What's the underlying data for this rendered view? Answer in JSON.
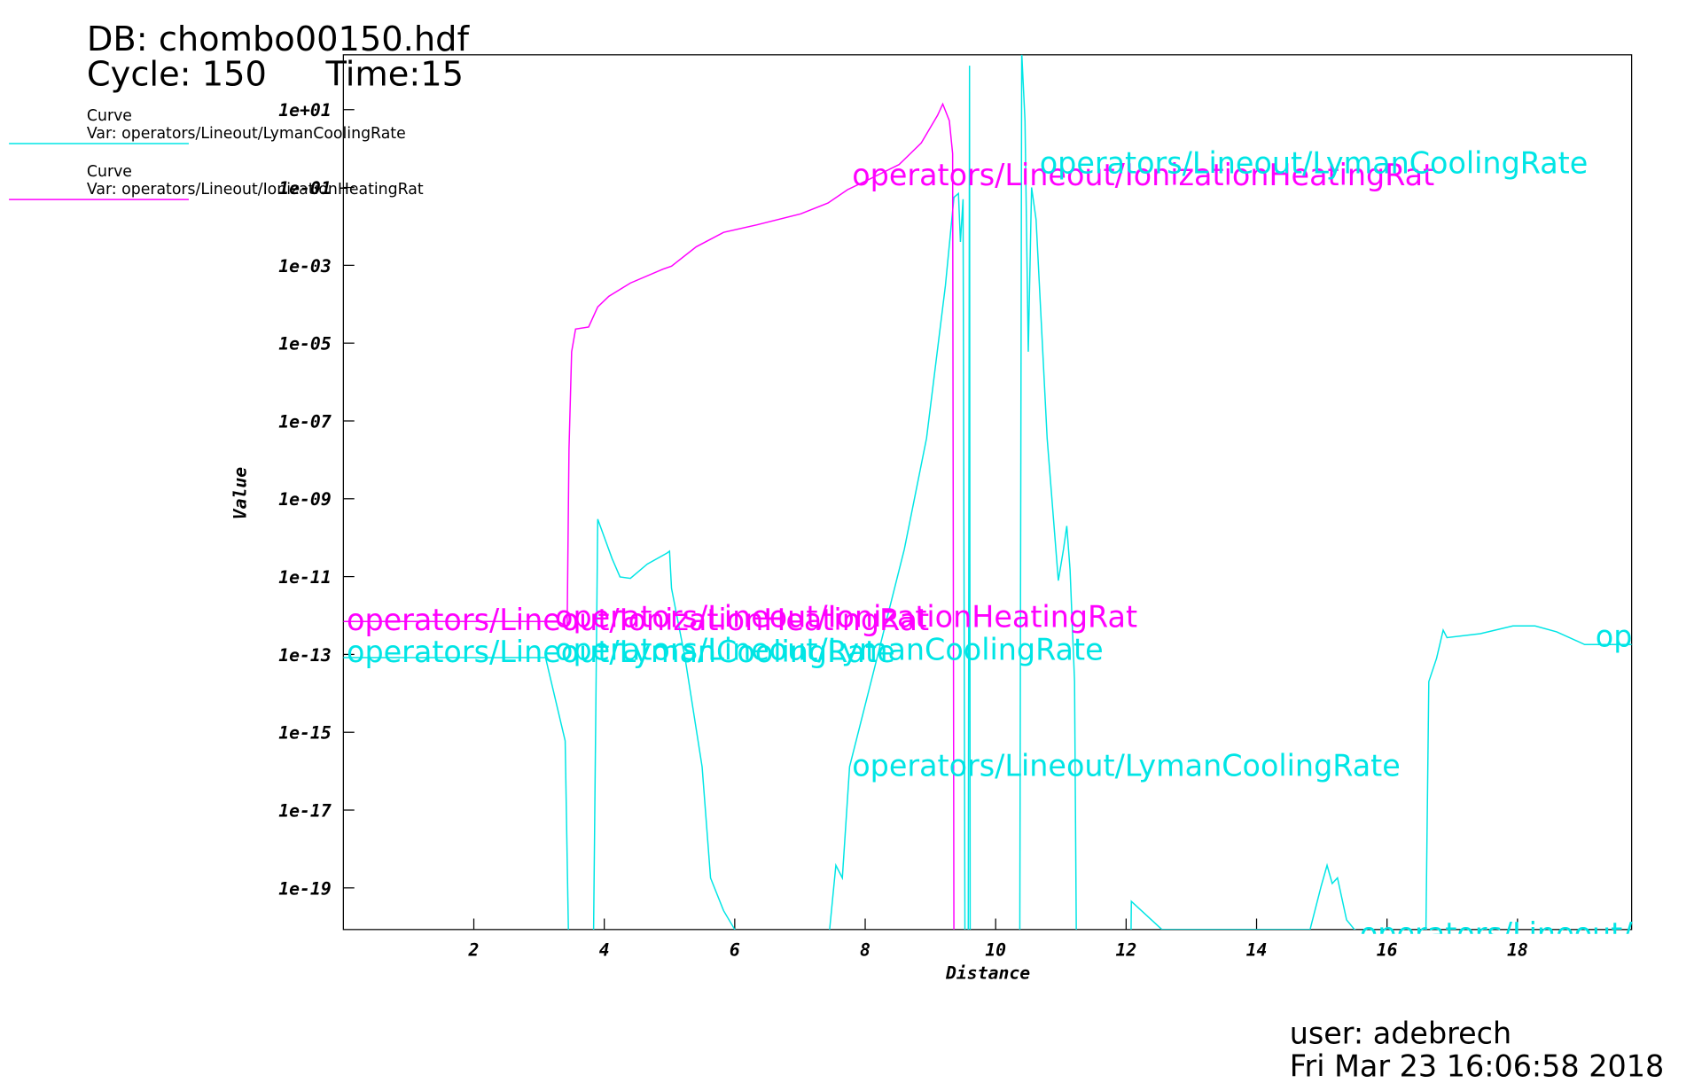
{
  "chart_data": {
    "type": "line",
    "header": {
      "db": "DB: chombo00150.hdf",
      "cycle": "Cycle: 150",
      "time": "Time:15"
    },
    "footer": {
      "user": "user: adebrech",
      "date": "Fri Mar 23 16:06:58 2018"
    },
    "xlabel": "Distance",
    "ylabel": "Value",
    "log_y": true,
    "xlim": [
      0,
      19.75
    ],
    "ylim": [
      8.5e-21,
      257
    ],
    "xticks": [
      2,
      4,
      6,
      8,
      10,
      12,
      14,
      16,
      18
    ],
    "yticks": [
      {
        "value": 10,
        "label": "1e+01"
      },
      {
        "value": 0.1,
        "label": "1e-01"
      },
      {
        "value": 0.001,
        "label": "1e-03"
      },
      {
        "value": 1e-05,
        "label": "1e-05"
      },
      {
        "value": 1e-07,
        "label": "1e-07"
      },
      {
        "value": 1e-09,
        "label": "1e-09"
      },
      {
        "value": 1e-11,
        "label": "1e-11"
      },
      {
        "value": 1e-13,
        "label": "1e-13"
      },
      {
        "value": 1e-15,
        "label": "1e-15"
      },
      {
        "value": 1e-17,
        "label": "1e-17"
      },
      {
        "value": 1e-19,
        "label": "1e-19"
      }
    ],
    "series": [
      {
        "label": "Curve",
        "name": "Var: operators/Lineout/LymanCoolingRate",
        "color": "#00e5e5",
        "x": [
          0,
          3.1,
          3.4,
          3.46,
          3.83,
          3.9,
          4.12,
          4.24,
          4.4,
          4.66,
          4.96,
          5.0,
          5.03,
          5.24,
          5.5,
          5.63,
          5.83,
          6.0,
          6.1,
          7.4,
          7.55,
          7.65,
          7.76,
          8.18,
          8.6,
          8.94,
          9.23,
          9.36,
          9.43,
          9.46,
          9.5,
          9.53,
          9.58,
          9.6,
          9.61,
          10.37,
          10.4,
          10.45,
          10.5,
          10.55,
          10.62,
          10.79,
          10.96,
          11.04,
          11.09,
          11.14,
          11.21,
          11.24,
          12.07,
          12.08,
          12.55,
          14.82,
          14.99,
          15.08,
          15.16,
          15.24,
          15.38,
          15.5,
          16.59,
          16.64,
          16.76,
          16.86,
          16.92,
          17.43,
          17.93,
          18.27,
          18.6,
          19.03,
          19.75
        ],
        "values": [
          8.3e-14,
          8.3e-14,
          6e-16,
          1e-21,
          1e-21,
          3e-10,
          2.9e-11,
          9.8e-12,
          9e-12,
          2.1e-11,
          4e-11,
          4.5e-11,
          5e-12,
          8e-14,
          1.3e-16,
          1.8e-19,
          2.6e-20,
          8.5e-21,
          1e-21,
          1e-21,
          3.8e-19,
          1.8e-19,
          1.3e-16,
          8e-14,
          5e-11,
          3.6e-08,
          0.0003,
          0.056,
          0.07,
          0.004,
          0.05,
          1e-21,
          1e-21,
          135,
          1e-21,
          1e-21,
          300,
          5.2,
          6e-06,
          0.1,
          0.015,
          3.6e-08,
          7.9e-12,
          5e-11,
          2e-10,
          1.5e-11,
          2e-14,
          1e-21,
          1e-21,
          4.5e-20,
          8.5e-21,
          8.5e-21,
          1.1e-19,
          3.8e-19,
          1.3e-19,
          1.8e-19,
          1.5e-20,
          8.5e-21,
          1e-21,
          2e-14,
          8e-14,
          4.2e-13,
          2.7e-13,
          3.4e-13,
          5.4e-13,
          5.4e-13,
          3.8e-13,
          1.8e-13,
          1.8e-13
        ]
      },
      {
        "label": "Curve",
        "name": "Var: operators/Lineout/IonizationHeatingRat",
        "color": "#ff00ff",
        "x": [
          0,
          3.3,
          3.43,
          3.46,
          3.5,
          3.56,
          3.76,
          3.9,
          4.07,
          4.4,
          4.9,
          5.03,
          5.41,
          5.83,
          6.34,
          7.01,
          7.43,
          7.73,
          8.02,
          8.52,
          8.86,
          9.11,
          9.19,
          9.29,
          9.34,
          9.36,
          19.75
        ],
        "values": [
          7e-13,
          7e-13,
          5e-13,
          1.9e-08,
          6e-06,
          2.3e-05,
          2.6e-05,
          8.5e-05,
          0.00016,
          0.00035,
          0.0008,
          0.00095,
          0.003,
          0.007,
          0.011,
          0.021,
          0.04,
          0.088,
          0.15,
          0.39,
          1.4,
          7.2,
          14,
          5.2,
          0.74,
          1e-21,
          1e-21
        ]
      }
    ],
    "annotations": [
      {
        "text": "operators/Lineout/IonizationHeatingRat",
        "color": "#ff00ff"
      },
      {
        "text": "operators/Lineout/LymanCoolingRate",
        "color": "#00e5e5"
      },
      {
        "text": "operators/Lineout/IonizationHeatingRat",
        "color": "#ff00ff"
      },
      {
        "text": "operators/Lineout/IonizationHeatingRat",
        "color": "#ff00ff"
      },
      {
        "text": "operators/Lineout/LymanCoolingRate",
        "color": "#00e5e5"
      },
      {
        "text": "operators/Lineout/LymanCoolingRate",
        "color": "#00e5e5"
      },
      {
        "text": "operators/Lineout/LymanCoolingRate",
        "color": "#00e5e5"
      },
      {
        "text": "operators/Lineout/LymanCoolingRate",
        "color": "#00e5e5"
      },
      {
        "text": "operators/Lineout/LymanCoolingRate",
        "color": "#00e5e5"
      }
    ]
  }
}
